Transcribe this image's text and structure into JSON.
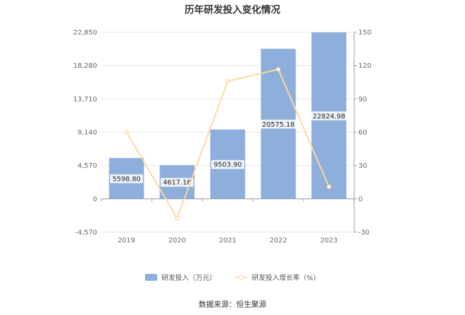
{
  "chart_data": {
    "type": "bar",
    "title": "历年研发投入变化情况",
    "categories": [
      "2019",
      "2020",
      "2021",
      "2022",
      "2023"
    ],
    "series": [
      {
        "name": "研发投入（万元）",
        "kind": "bar",
        "axis": "left",
        "values": [
          5598.8,
          4617.16,
          9503.9,
          20575.18,
          22824.98
        ],
        "labels": [
          "5598.80",
          "4617.16",
          "9503.90",
          "20575.18",
          "22824.98"
        ]
      },
      {
        "name": "研发投入增长率（%）",
        "kind": "line",
        "axis": "right",
        "values": [
          60.0,
          -17.5,
          105.8,
          116.5,
          10.9
        ]
      }
    ],
    "y_left": {
      "ticks": [
        "22,850",
        "18,280",
        "13,710",
        "9,140",
        "4,570",
        "0",
        "-4,570"
      ],
      "min": -4570,
      "max": 22850
    },
    "y_right": {
      "ticks": [
        "150",
        "120",
        "90",
        "60",
        "30",
        "0",
        "-30"
      ],
      "min": -30,
      "max": 150
    },
    "grid": true,
    "legend_position": "bottom"
  },
  "colors": {
    "bar": "#8eaedb",
    "line": "#fdd9a0"
  },
  "source_text": "数据来源：恒生聚源"
}
